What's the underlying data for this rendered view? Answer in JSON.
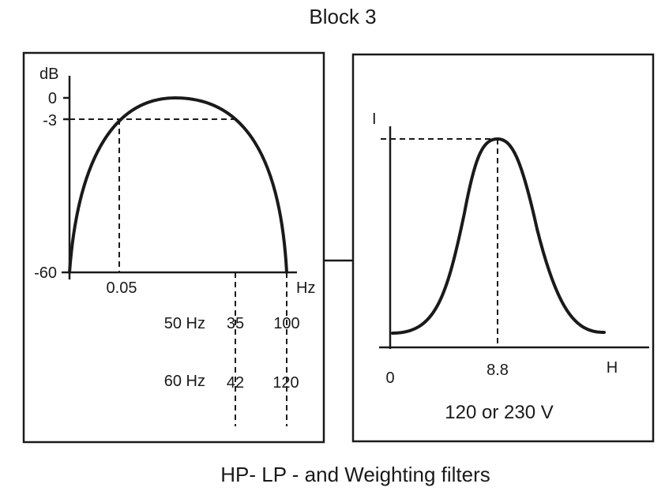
{
  "title": "Block 3",
  "caption": "HP- LP - and Weighting filters",
  "left_panel": {
    "y_axis_label": "dB",
    "y_ticks": [
      "0",
      "-3",
      "-60"
    ],
    "x_axis_label": "Hz",
    "x_tick": "0.05",
    "row_50hz": {
      "label": "50 Hz",
      "low": "35",
      "high": "100"
    },
    "row_60hz": {
      "label": "60 Hz",
      "low": "42",
      "high": "120"
    }
  },
  "right_panel": {
    "y_axis_label": "I",
    "x_origin": "0",
    "x_tick": "8.8",
    "x_axis_label": "H",
    "voltage_label": "120 or 230 V"
  }
}
